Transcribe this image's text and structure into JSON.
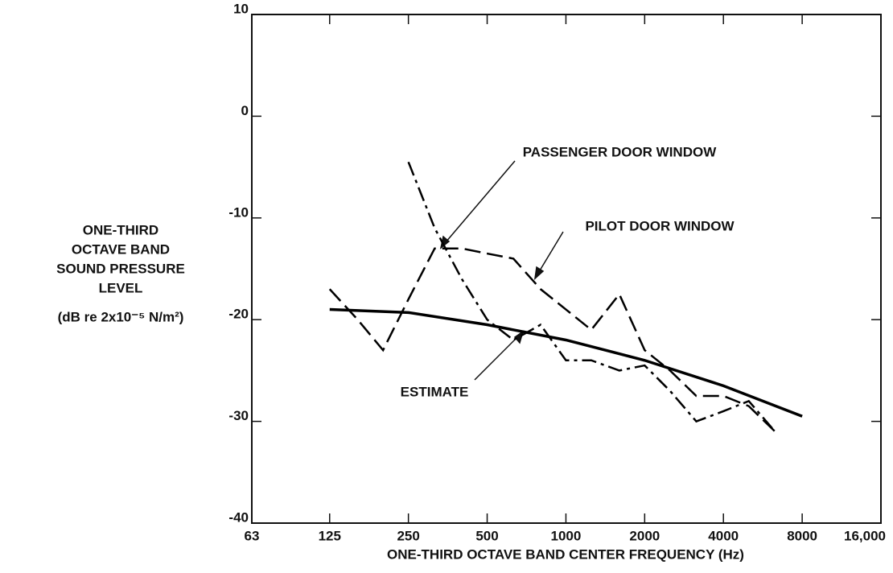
{
  "chart_data": {
    "type": "line",
    "xlabel": "ONE-THIRD OCTAVE BAND CENTER FREQUENCY (Hz)",
    "ylabel": [
      "ONE-THIRD",
      "OCTAVE BAND",
      "SOUND PRESSURE",
      "LEVEL",
      "(dB re 2x10⁻⁵ N/m²)"
    ],
    "xscale": "log",
    "xlim": [
      63,
      16000
    ],
    "xticks": [
      63,
      125,
      250,
      500,
      1000,
      2000,
      4000,
      8000,
      {
        "value": 16000,
        "label": "16,000"
      }
    ],
    "ylim": [
      -40,
      10
    ],
    "yticks": [
      -40,
      -30,
      -20,
      -10,
      0,
      10
    ],
    "grid": false,
    "series": [
      {
        "name": "PASSENGER DOOR WINDOW",
        "color": "#000000",
        "dash": "dashdot",
        "x": [
          250,
          315,
          400,
          500,
          630,
          800,
          1000,
          1250,
          1600,
          2000,
          2500,
          3150,
          4000,
          5000,
          6300
        ],
        "values": [
          -4.5,
          -11,
          -16,
          -20,
          -22,
          -20.5,
          -24,
          -24,
          -25,
          -24.5,
          -27,
          -30,
          -29,
          -28,
          -31
        ]
      },
      {
        "name": "PILOT DOOR WINDOW",
        "color": "#000000",
        "dash": "dashed",
        "x": [
          125,
          160,
          200,
          250,
          315,
          400,
          500,
          630,
          800,
          1000,
          1250,
          1600,
          2000,
          2500,
          3150,
          4000,
          5000,
          6300
        ],
        "values": [
          -17,
          -20,
          -23,
          -18,
          -13,
          -13,
          -13.5,
          -14,
          -17,
          -19,
          -21,
          -17.5,
          -23,
          -25,
          -27.5,
          -27.5,
          -28.5,
          -31
        ]
      },
      {
        "name": "ESTIMATE",
        "color": "#000000",
        "dash": "solid",
        "x": [
          125,
          250,
          500,
          1000,
          2000,
          4000,
          8000
        ],
        "values": [
          -19,
          -19.3,
          -20.5,
          -22,
          -24,
          -26.5,
          -29.5
        ]
      }
    ]
  }
}
